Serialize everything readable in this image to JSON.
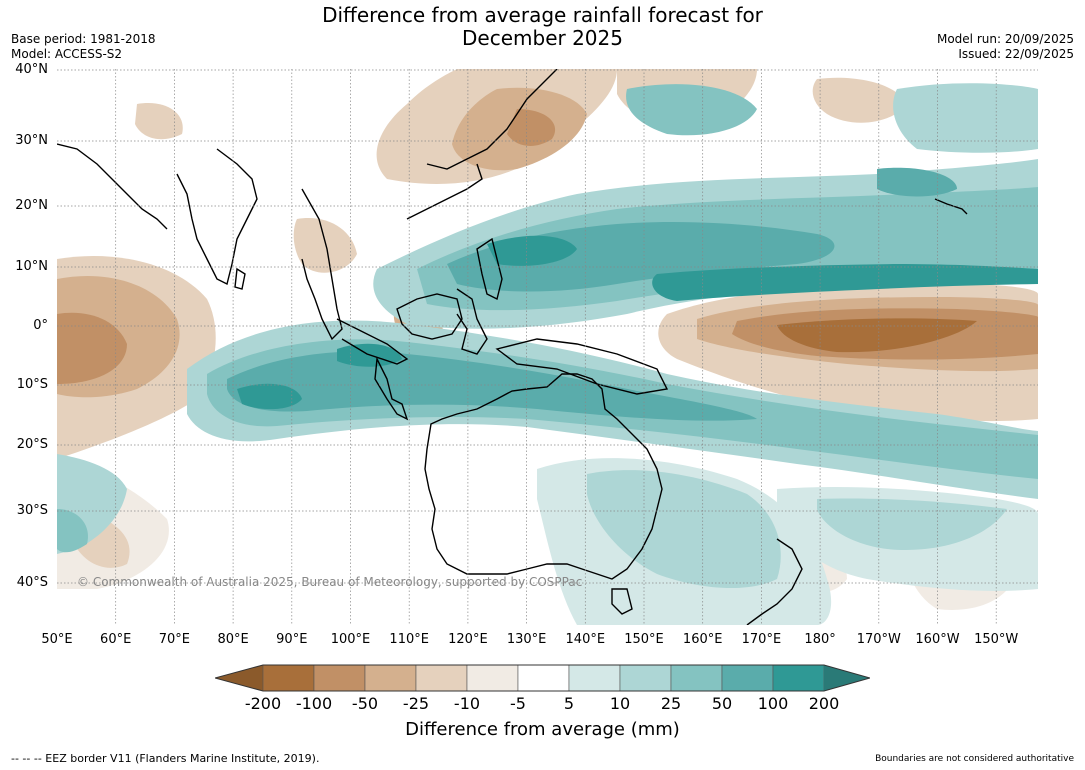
{
  "header": {
    "title_line1": "Difference from average rainfall forecast for",
    "title_line2": "December 2025",
    "base_period": "Base period: 1981-2018",
    "model": "Model: ACCESS-S2",
    "model_run": "Model run: 20/09/2025",
    "issued": "Issued: 22/09/2025"
  },
  "map": {
    "copyright": "© Commonwealth of Australia 2025, Bureau of Meteorology, supported by COSPPac",
    "lat_labels": [
      "40°N",
      "30°N",
      "20°N",
      "10°N",
      "0°",
      "10°S",
      "20°S",
      "30°S",
      "40°S"
    ],
    "lon_labels": [
      "50°E",
      "60°E",
      "70°E",
      "80°E",
      "90°E",
      "100°E",
      "110°E",
      "120°E",
      "130°E",
      "140°E",
      "150°E",
      "160°E",
      "170°E",
      "180°",
      "170°W",
      "160°W",
      "150°W"
    ]
  },
  "colorbar": {
    "title": "Difference from average (mm)",
    "labels": [
      "-200",
      "-100",
      "-50",
      "-25",
      "-10",
      "-5",
      "5",
      "10",
      "25",
      "50",
      "100",
      "200"
    ],
    "colors": {
      "below_min": "#8b5a2b",
      "c1": "#a86f3a",
      "c2": "#c19066",
      "c3": "#d4b08e",
      "c4": "#e5d1bd",
      "c5": "#f1ebe4",
      "c6": "#ffffff",
      "c7": "#d4e8e7",
      "c8": "#add6d5",
      "c9": "#84c3c1",
      "c10": "#5aacab",
      "c11": "#2f9995",
      "above_max": "#2a7a77"
    }
  },
  "footer": {
    "eez_note": "--  --  -- EEZ border V11 (Flanders Marine Institute, 2019).",
    "boundaries_note": "Boundaries are not considered authoritative"
  }
}
